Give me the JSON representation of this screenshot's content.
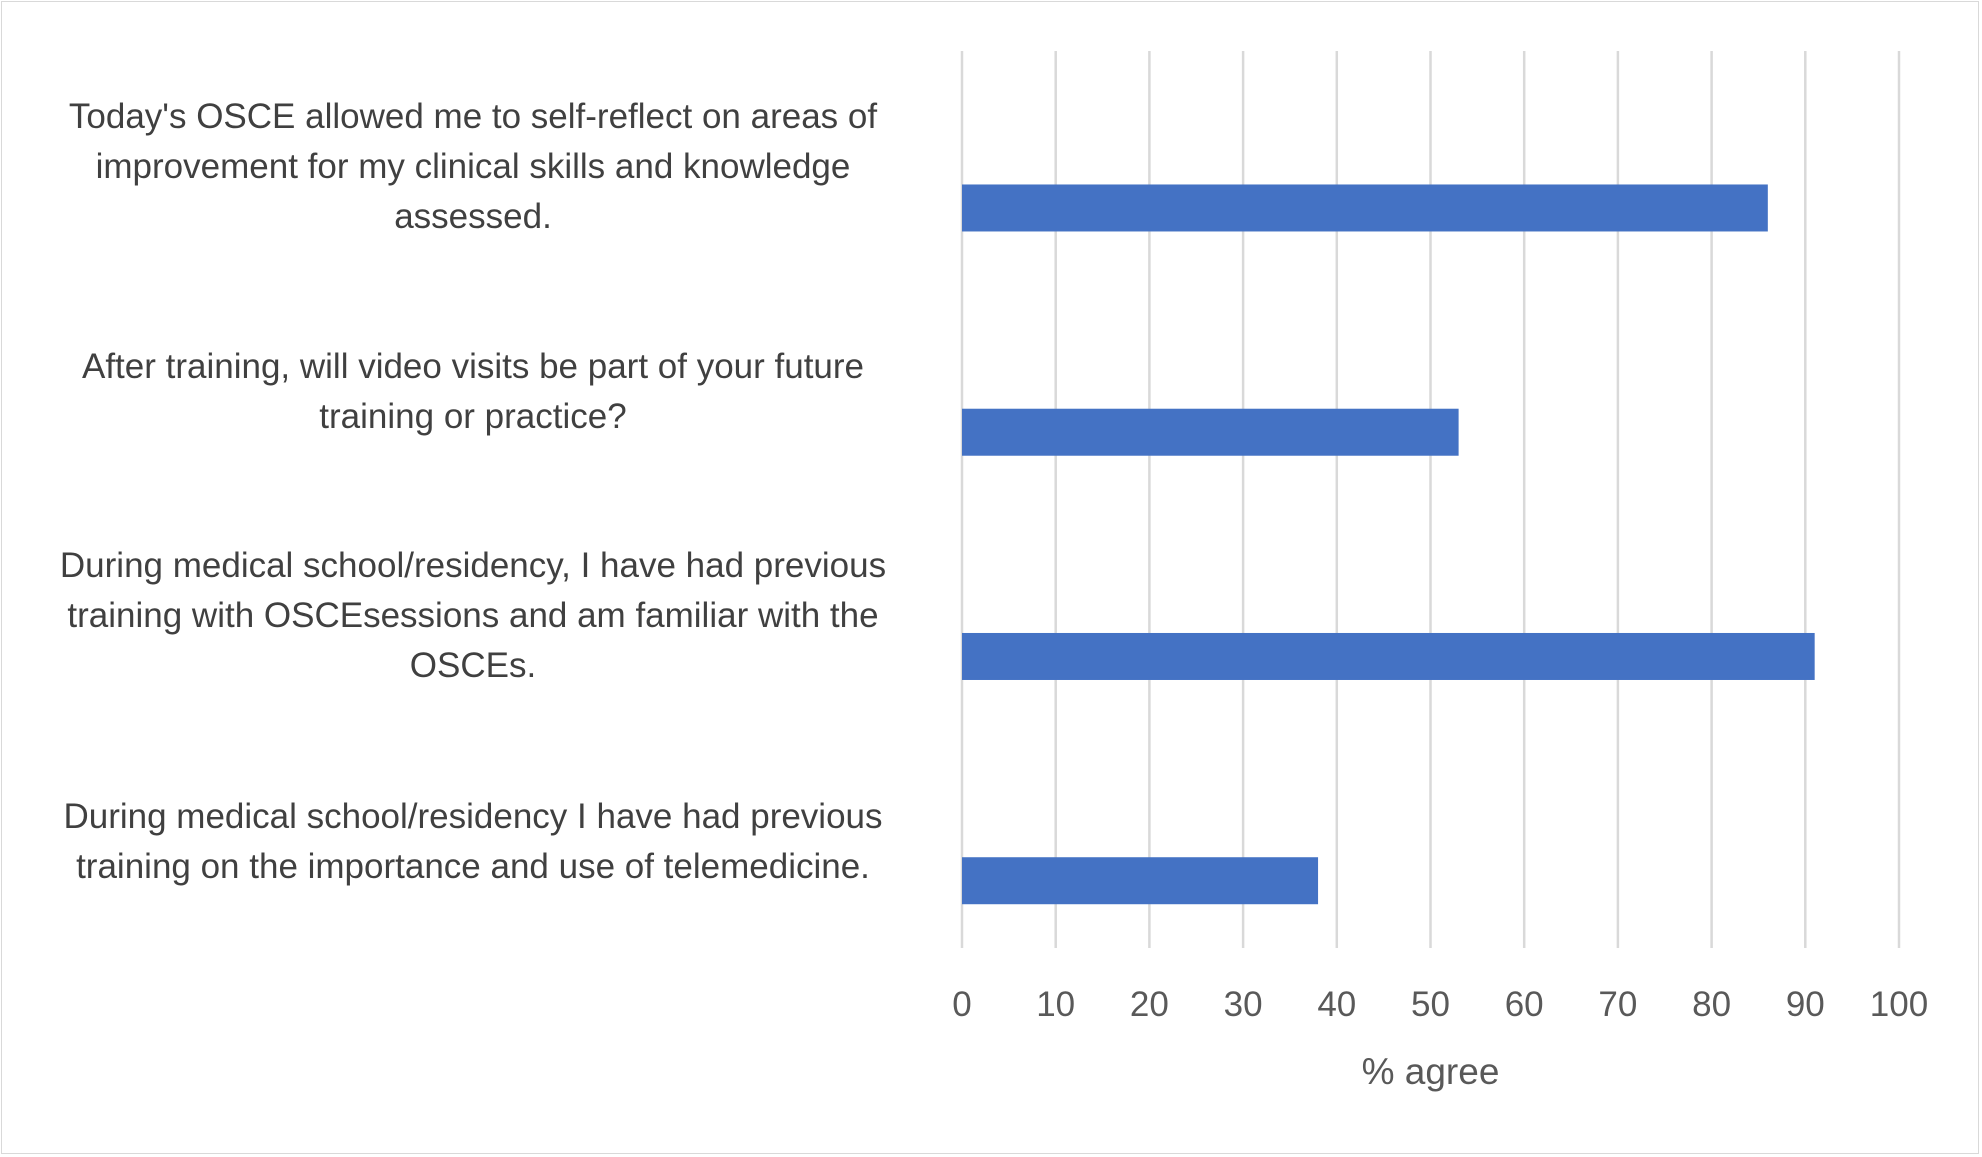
{
  "chart_data": {
    "type": "bar",
    "orientation": "horizontal",
    "categories": [
      "Today's OSCE allowed me to self-reflect on areas of improvement for my clinical skills and knowledge assessed.",
      "After training, will video visits be part of your future training or practice?",
      "During medical school/residency, I have had previous training with OSCEsessions and am familiar with the OSCEs.",
      "During medical school/residency I have had previous training on the importance and use of telemedicine."
    ],
    "values": [
      86,
      53,
      91,
      38
    ],
    "title": "",
    "xlabel": "% agree",
    "ylabel": "",
    "xlim": [
      0,
      100
    ],
    "xticks": [
      "0",
      "10",
      "20",
      "30",
      "40",
      "50",
      "60",
      "70",
      "80",
      "90",
      "100"
    ],
    "grid": true,
    "bar_color": "#4472C4",
    "grid_color": "#D9D9D9"
  }
}
